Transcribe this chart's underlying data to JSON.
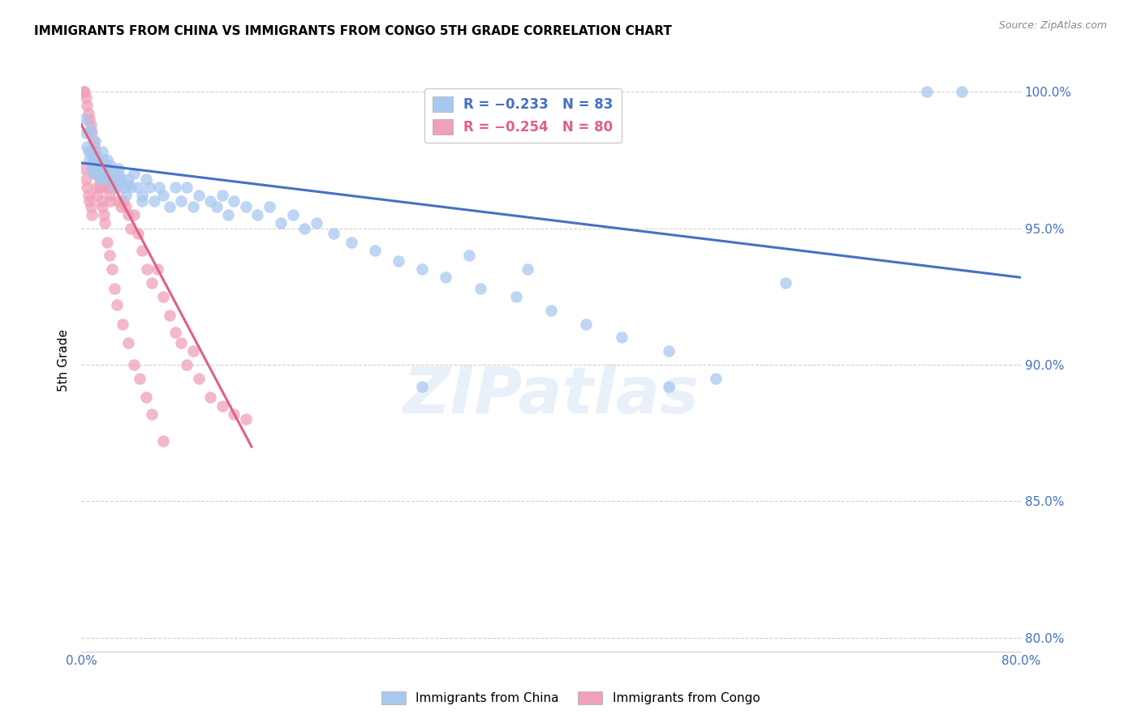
{
  "title": "IMMIGRANTS FROM CHINA VS IMMIGRANTS FROM CONGO 5TH GRADE CORRELATION CHART",
  "source": "Source: ZipAtlas.com",
  "ylabel": "5th Grade",
  "xlim": [
    0.0,
    0.8
  ],
  "ylim": [
    0.795,
    1.008
  ],
  "xticks": [
    0.0,
    0.1,
    0.2,
    0.3,
    0.4,
    0.5,
    0.6,
    0.7,
    0.8
  ],
  "xticklabels": [
    "0.0%",
    "",
    "",
    "",
    "",
    "",
    "",
    "",
    "80.0%"
  ],
  "yticks": [
    0.8,
    0.85,
    0.9,
    0.95,
    1.0
  ],
  "yticklabels": [
    "80.0%",
    "85.0%",
    "90.0%",
    "95.0%",
    "100.0%"
  ],
  "legend_china": "R = −0.233   N = 83",
  "legend_congo": "R = −0.254   N = 80",
  "china_color": "#a8c8f0",
  "congo_color": "#f0a0b8",
  "china_line_color": "#4472c4",
  "congo_line_color": "#e06080",
  "watermark": "ZIPatlas",
  "grid_color": "#d0d0d0",
  "axis_color": "#4472c4",
  "china_scatter_x": [
    0.003,
    0.004,
    0.005,
    0.006,
    0.007,
    0.008,
    0.009,
    0.01,
    0.011,
    0.012,
    0.013,
    0.014,
    0.015,
    0.016,
    0.017,
    0.018,
    0.019,
    0.02,
    0.021,
    0.022,
    0.024,
    0.026,
    0.028,
    0.03,
    0.032,
    0.034,
    0.036,
    0.038,
    0.04,
    0.042,
    0.045,
    0.048,
    0.052,
    0.055,
    0.058,
    0.062,
    0.066,
    0.07,
    0.075,
    0.08,
    0.085,
    0.09,
    0.095,
    0.1,
    0.11,
    0.115,
    0.12,
    0.125,
    0.13,
    0.14,
    0.15,
    0.16,
    0.17,
    0.18,
    0.19,
    0.2,
    0.215,
    0.23,
    0.25,
    0.27,
    0.29,
    0.31,
    0.34,
    0.37,
    0.4,
    0.43,
    0.46,
    0.5,
    0.54,
    0.29,
    0.33,
    0.38,
    0.5,
    0.6,
    0.72,
    0.75,
    0.008,
    0.012,
    0.018,
    0.025,
    0.032,
    0.04,
    0.052
  ],
  "china_scatter_y": [
    0.99,
    0.985,
    0.98,
    0.978,
    0.975,
    0.978,
    0.972,
    0.97,
    0.975,
    0.978,
    0.972,
    0.975,
    0.97,
    0.968,
    0.972,
    0.975,
    0.97,
    0.968,
    0.972,
    0.975,
    0.97,
    0.968,
    0.965,
    0.968,
    0.972,
    0.968,
    0.965,
    0.962,
    0.968,
    0.965,
    0.97,
    0.965,
    0.962,
    0.968,
    0.965,
    0.96,
    0.965,
    0.962,
    0.958,
    0.965,
    0.96,
    0.965,
    0.958,
    0.962,
    0.96,
    0.958,
    0.962,
    0.955,
    0.96,
    0.958,
    0.955,
    0.958,
    0.952,
    0.955,
    0.95,
    0.952,
    0.948,
    0.945,
    0.942,
    0.938,
    0.935,
    0.932,
    0.928,
    0.925,
    0.92,
    0.915,
    0.91,
    0.905,
    0.895,
    0.892,
    0.94,
    0.935,
    0.892,
    0.93,
    1.0,
    1.0,
    0.986,
    0.982,
    0.978,
    0.973,
    0.97,
    0.966,
    0.96
  ],
  "congo_scatter_x": [
    0.002,
    0.003,
    0.004,
    0.005,
    0.006,
    0.007,
    0.008,
    0.009,
    0.01,
    0.011,
    0.012,
    0.013,
    0.014,
    0.015,
    0.016,
    0.017,
    0.018,
    0.019,
    0.02,
    0.021,
    0.022,
    0.023,
    0.024,
    0.025,
    0.026,
    0.028,
    0.03,
    0.032,
    0.034,
    0.036,
    0.038,
    0.04,
    0.042,
    0.045,
    0.048,
    0.052,
    0.056,
    0.06,
    0.065,
    0.07,
    0.075,
    0.08,
    0.085,
    0.09,
    0.095,
    0.1,
    0.11,
    0.12,
    0.13,
    0.14,
    0.003,
    0.004,
    0.005,
    0.006,
    0.007,
    0.008,
    0.009,
    0.01,
    0.011,
    0.012,
    0.013,
    0.014,
    0.015,
    0.016,
    0.017,
    0.018,
    0.019,
    0.02,
    0.022,
    0.024,
    0.026,
    0.028,
    0.03,
    0.035,
    0.04,
    0.045,
    0.05,
    0.055,
    0.06,
    0.07
  ],
  "congo_scatter_y": [
    1.0,
    1.0,
    0.998,
    0.995,
    0.992,
    0.99,
    0.988,
    0.985,
    0.982,
    0.98,
    0.978,
    0.975,
    0.972,
    0.97,
    0.968,
    0.972,
    0.97,
    0.968,
    0.965,
    0.97,
    0.968,
    0.965,
    0.962,
    0.96,
    0.965,
    0.968,
    0.965,
    0.96,
    0.958,
    0.96,
    0.958,
    0.955,
    0.95,
    0.955,
    0.948,
    0.942,
    0.935,
    0.93,
    0.935,
    0.925,
    0.918,
    0.912,
    0.908,
    0.9,
    0.905,
    0.895,
    0.888,
    0.885,
    0.882,
    0.88,
    0.972,
    0.968,
    0.965,
    0.962,
    0.96,
    0.958,
    0.955,
    0.975,
    0.972,
    0.97,
    0.965,
    0.962,
    0.97,
    0.965,
    0.96,
    0.958,
    0.955,
    0.952,
    0.945,
    0.94,
    0.935,
    0.928,
    0.922,
    0.915,
    0.908,
    0.9,
    0.895,
    0.888,
    0.882,
    0.872
  ],
  "china_trend_x": [
    0.0,
    0.8
  ],
  "china_trend_y": [
    0.974,
    0.932
  ],
  "congo_trend_x": [
    0.0,
    0.145
  ],
  "congo_trend_y": [
    0.988,
    0.87
  ]
}
